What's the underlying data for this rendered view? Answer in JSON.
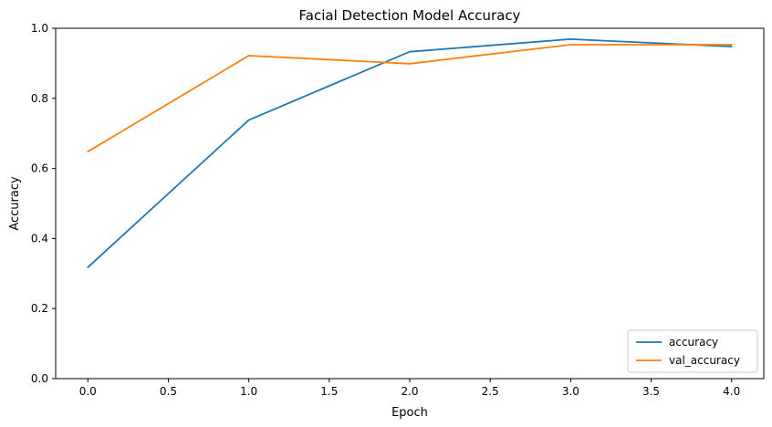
{
  "chart_data": {
    "type": "line",
    "title": "Facial Detection Model Accuracy",
    "xlabel": "Epoch",
    "ylabel": "Accuracy",
    "xlim": [
      -0.2,
      4.2
    ],
    "ylim": [
      0.0,
      1.0
    ],
    "x_ticks": [
      0.0,
      0.5,
      1.0,
      1.5,
      2.0,
      2.5,
      3.0,
      3.5,
      4.0
    ],
    "x_tick_labels": [
      "0.0",
      "0.5",
      "1.0",
      "1.5",
      "2.0",
      "2.5",
      "3.0",
      "3.5",
      "4.0"
    ],
    "y_ticks": [
      0.0,
      0.2,
      0.4,
      0.6,
      0.8,
      1.0
    ],
    "y_tick_labels": [
      "0.0",
      "0.2",
      "0.4",
      "0.6",
      "0.8",
      "1.0"
    ],
    "grid": false,
    "legend_position": "lower-right",
    "x": [
      0,
      1,
      2,
      3,
      4
    ],
    "series": [
      {
        "name": "accuracy",
        "color": "#1f77b4",
        "values": [
          0.318,
          0.738,
          0.933,
          0.969,
          0.948
        ]
      },
      {
        "name": "val_accuracy",
        "color": "#ff7f0e",
        "values": [
          0.648,
          0.922,
          0.899,
          0.953,
          0.953
        ]
      }
    ]
  }
}
